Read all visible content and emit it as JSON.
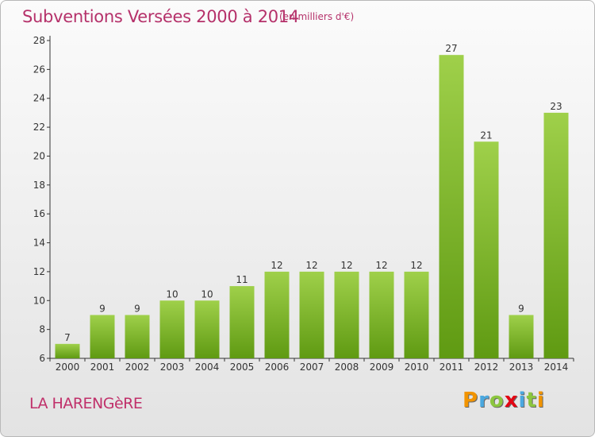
{
  "header": {
    "title": "Subventions Versées 2000 à 2014",
    "subtitle": "(en milliers d'€)"
  },
  "footer": {
    "commune": "LA HARENGèRE",
    "logo_letters": [
      "P",
      "r",
      "o",
      "x",
      "i",
      "t",
      "i"
    ]
  },
  "colors": {
    "title": "#b5316a",
    "bar_top": "#9fd04a",
    "bar_bottom": "#5f9a12",
    "logo": [
      "#f29400",
      "#4aa8e0",
      "#8cc63f",
      "#e30613",
      "#4aa8e0",
      "#8cc63f",
      "#f29400"
    ]
  },
  "chart_data": {
    "type": "bar",
    "categories": [
      "2000",
      "2001",
      "2002",
      "2003",
      "2004",
      "2005",
      "2006",
      "2007",
      "2008",
      "2009",
      "2010",
      "2011",
      "2012",
      "2013",
      "2014"
    ],
    "values": [
      7,
      9,
      9,
      10,
      10,
      11,
      12,
      12,
      12,
      12,
      12,
      27,
      21,
      9,
      23
    ],
    "ylim": [
      6,
      28
    ],
    "yticks": [
      6,
      8,
      10,
      12,
      14,
      16,
      18,
      20,
      22,
      24,
      26,
      28
    ],
    "grid": false
  }
}
